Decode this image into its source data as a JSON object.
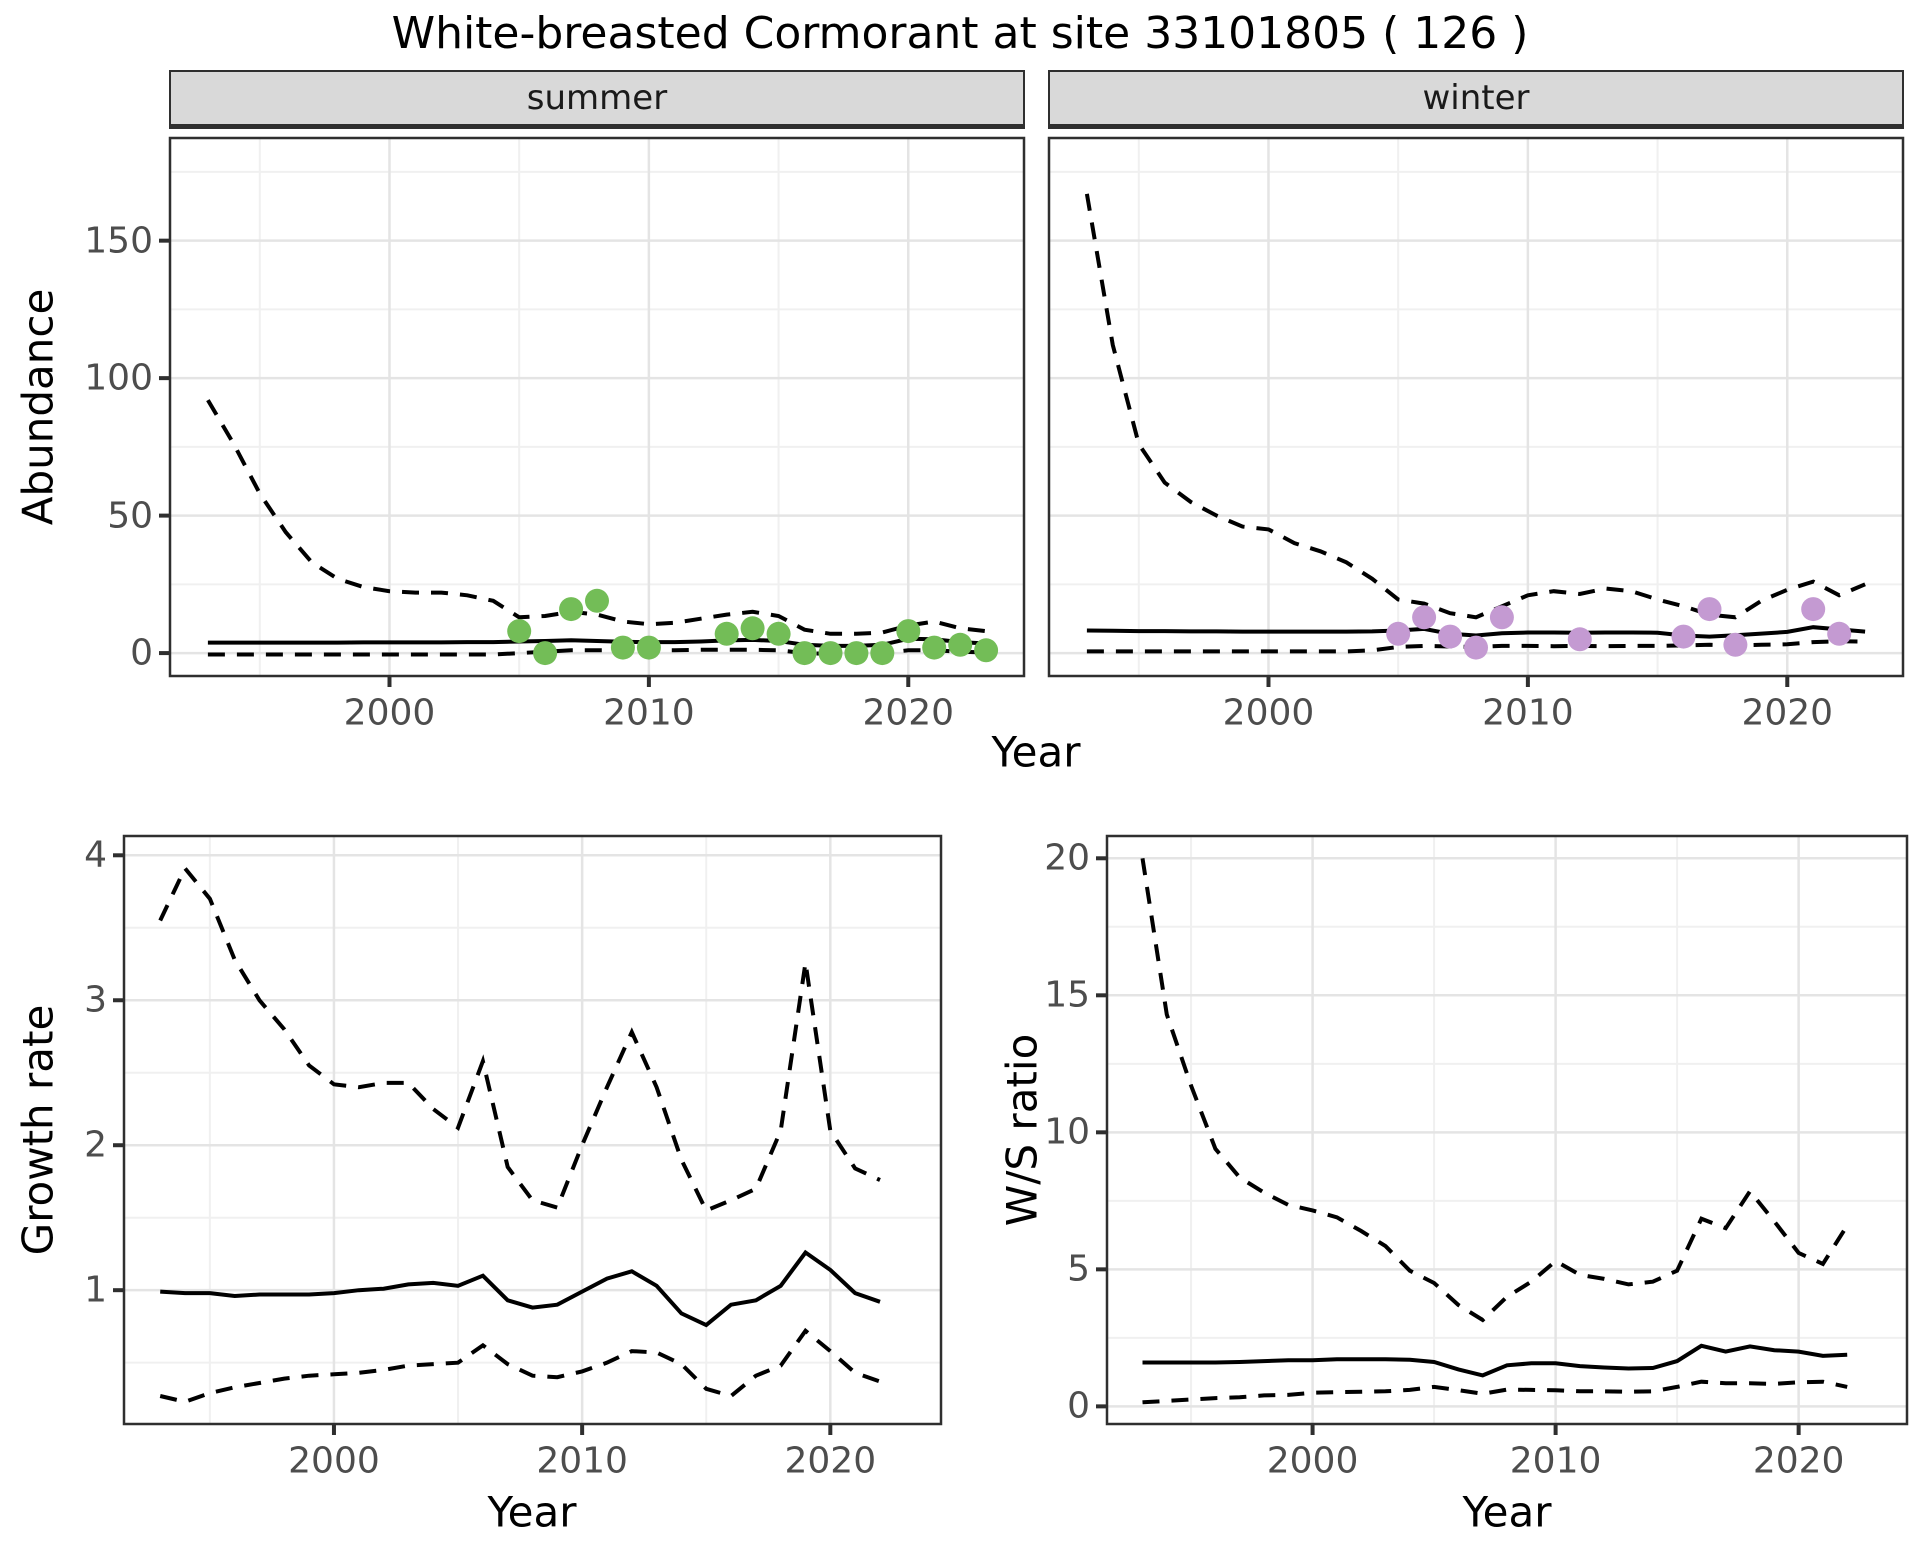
{
  "title": "White-breasted Cormorant at site 33101805 ( 126 )",
  "facets": {
    "summer_label": "summer",
    "winter_label": "winter"
  },
  "axes": {
    "abundance_label": "Abundance",
    "growth_label": "Growth rate",
    "ws_label": "W/S ratio",
    "year_label": "Year",
    "year_ticks": [
      2000,
      2010,
      2020
    ],
    "year_minor": [
      1995,
      2005,
      2015
    ],
    "abundance_ticks": [
      0,
      50,
      100,
      150
    ],
    "abundance_minor": [
      25,
      75,
      125,
      175
    ],
    "growth_ticks": [
      1,
      2,
      3,
      4
    ],
    "growth_minor": [
      0.5,
      1.5,
      2.5,
      3.5
    ],
    "ws_ticks": [
      0,
      5,
      10,
      15,
      20
    ],
    "ws_minor": [
      2.5,
      7.5,
      12.5,
      17.5
    ]
  },
  "colors": {
    "summer_dot": "#73bd57",
    "winter_dot": "#c49ad2",
    "line": "#000000",
    "grid_major": "#e4e4e4",
    "grid_minor": "#f0f0f0",
    "panel_border": "#2f2f2f",
    "axis_text": "#4d4d4d",
    "strip_bg": "#d9d9d9"
  },
  "chart_data": [
    {
      "id": "summer-abundance",
      "type": "line",
      "facet": "summer",
      "xlabel": "Year",
      "ylabel": "Abundance",
      "xlim": [
        1991.5,
        2024.5
      ],
      "ylim": [
        -8.7,
        187.7
      ],
      "x": [
        1993,
        1994,
        1995,
        1996,
        1997,
        1998,
        1999,
        2000,
        2001,
        2002,
        2003,
        2004,
        2005,
        2006,
        2007,
        2008,
        2009,
        2010,
        2011,
        2012,
        2013,
        2014,
        2015,
        2016,
        2017,
        2018,
        2019,
        2020,
        2021,
        2022,
        2023
      ],
      "series": [
        {
          "name": "mean",
          "style": "solid",
          "values": [
            3.8,
            3.8,
            3.8,
            3.8,
            3.8,
            3.8,
            3.9,
            3.9,
            3.9,
            3.9,
            4.0,
            4.0,
            4.2,
            4.4,
            4.7,
            4.4,
            4.1,
            4.0,
            4.0,
            4.2,
            4.6,
            4.8,
            4.4,
            3.0,
            2.6,
            2.6,
            3.0,
            5.2,
            5.0,
            4.0,
            3.5
          ]
        },
        {
          "name": "upper_ci",
          "style": "dashed",
          "values": [
            92,
            76,
            58,
            44,
            33,
            27,
            24,
            22.5,
            22,
            22,
            21,
            19,
            13,
            13.5,
            15,
            14,
            11.5,
            10.5,
            11,
            12.5,
            14,
            15,
            13.5,
            8.5,
            7,
            7,
            7.5,
            10,
            11.5,
            9,
            8
          ]
        },
        {
          "name": "lower_ci",
          "style": "dashed",
          "values": [
            -0.5,
            -0.5,
            -0.5,
            -0.5,
            -0.5,
            -0.5,
            -0.5,
            -0.5,
            -0.5,
            -0.5,
            -0.5,
            -0.5,
            0,
            0.5,
            1,
            1,
            1,
            1,
            1,
            1.2,
            1.2,
            1.2,
            1,
            0,
            -0.3,
            -0.3,
            0,
            1,
            1,
            0.5,
            0.2
          ]
        }
      ],
      "observations": {
        "x": [
          2005,
          2006,
          2007,
          2008,
          2009,
          2010,
          2013,
          2014,
          2015,
          2016,
          2017,
          2018,
          2019,
          2020,
          2021,
          2022,
          2023
        ],
        "y": [
          8,
          0,
          16,
          19,
          2,
          2,
          7,
          9,
          7,
          0,
          0,
          0,
          0,
          8,
          2,
          3,
          1
        ]
      }
    },
    {
      "id": "winter-abundance",
      "type": "line",
      "facet": "winter",
      "xlabel": "Year",
      "ylabel": "Abundance",
      "xlim": [
        1991.5,
        2024.5
      ],
      "ylim": [
        -8.7,
        187.7
      ],
      "x": [
        1993,
        1994,
        1995,
        1996,
        1997,
        1998,
        1999,
        2000,
        2001,
        2002,
        2003,
        2004,
        2005,
        2006,
        2007,
        2008,
        2009,
        2010,
        2011,
        2012,
        2013,
        2014,
        2015,
        2016,
        2017,
        2018,
        2019,
        2020,
        2021,
        2022,
        2023
      ],
      "series": [
        {
          "name": "mean",
          "style": "solid",
          "values": [
            8.2,
            8.1,
            8.0,
            8.0,
            7.9,
            7.9,
            7.8,
            7.8,
            7.8,
            7.8,
            7.8,
            7.9,
            8.2,
            8.8,
            7.0,
            6.4,
            7.2,
            7.5,
            7.5,
            7.4,
            7.5,
            7.5,
            7.4,
            6.4,
            6.0,
            6.5,
            7.1,
            7.7,
            9.4,
            8.6,
            7.8
          ]
        },
        {
          "name": "upper_ci",
          "style": "dashed",
          "values": [
            167,
            112,
            76,
            62,
            55,
            50,
            46,
            45,
            40,
            37,
            33,
            27,
            19.5,
            18,
            14.5,
            13,
            17,
            21,
            22.5,
            21.5,
            23.5,
            22.5,
            19.5,
            17,
            14,
            13,
            19,
            23,
            26,
            21,
            25
          ]
        },
        {
          "name": "lower_ci",
          "style": "dashed",
          "values": [
            0.6,
            0.6,
            0.6,
            0.6,
            0.6,
            0.6,
            0.6,
            0.6,
            0.6,
            0.6,
            0.6,
            1.0,
            2.2,
            2.6,
            2.4,
            2.2,
            2.6,
            2.6,
            2.5,
            2.6,
            2.5,
            2.6,
            2.6,
            2.8,
            3.0,
            2.8,
            3.0,
            3.2,
            4.0,
            4.3,
            4.2
          ]
        }
      ],
      "observations": {
        "x": [
          2005,
          2006,
          2007,
          2008,
          2009,
          2012,
          2016,
          2017,
          2018,
          2021,
          2022
        ],
        "y": [
          7,
          13,
          6,
          2,
          13,
          5,
          6,
          16,
          3,
          16,
          7
        ]
      }
    },
    {
      "id": "growth-rate",
      "type": "line",
      "facet": null,
      "xlabel": "Year",
      "ylabel": "Growth rate",
      "xlim": [
        1991.5,
        2024.5
      ],
      "ylim": [
        0.07,
        4.14
      ],
      "x": [
        1993,
        1994,
        1995,
        1996,
        1997,
        1998,
        1999,
        2000,
        2001,
        2002,
        2003,
        2004,
        2005,
        2006,
        2007,
        2008,
        2009,
        2010,
        2011,
        2012,
        2013,
        2014,
        2015,
        2016,
        2017,
        2018,
        2019,
        2020,
        2021,
        2022
      ],
      "series": [
        {
          "name": "mean",
          "style": "solid",
          "values": [
            0.99,
            0.98,
            0.98,
            0.96,
            0.97,
            0.97,
            0.97,
            0.98,
            1.0,
            1.01,
            1.04,
            1.05,
            1.03,
            1.1,
            0.93,
            0.88,
            0.9,
            0.99,
            1.08,
            1.13,
            1.03,
            0.84,
            0.76,
            0.9,
            0.93,
            1.03,
            1.26,
            1.14,
            0.98,
            0.92
          ]
        },
        {
          "name": "upper_ci",
          "style": "dashed",
          "values": [
            3.55,
            3.91,
            3.7,
            3.28,
            3.0,
            2.8,
            2.55,
            2.42,
            2.4,
            2.43,
            2.43,
            2.25,
            2.12,
            2.58,
            1.85,
            1.62,
            1.57,
            2.0,
            2.4,
            2.78,
            2.4,
            1.9,
            1.55,
            1.62,
            1.7,
            2.1,
            3.26,
            2.1,
            1.84,
            1.76
          ]
        },
        {
          "name": "lower_ci",
          "style": "dashed",
          "values": [
            0.27,
            0.23,
            0.29,
            0.33,
            0.36,
            0.39,
            0.41,
            0.42,
            0.43,
            0.45,
            0.48,
            0.49,
            0.5,
            0.62,
            0.49,
            0.41,
            0.4,
            0.44,
            0.5,
            0.58,
            0.57,
            0.49,
            0.32,
            0.27,
            0.41,
            0.48,
            0.72,
            0.58,
            0.43,
            0.37
          ]
        }
      ],
      "observations": {
        "x": [],
        "y": []
      }
    },
    {
      "id": "ws-ratio",
      "type": "line",
      "facet": null,
      "xlabel": "Year",
      "ylabel": "W/S ratio",
      "xlim": [
        1991.5,
        2024.5
      ],
      "ylim": [
        -0.68,
        20.85
      ],
      "x": [
        1993,
        1994,
        1995,
        1996,
        1997,
        1998,
        1999,
        2000,
        2001,
        2002,
        2003,
        2004,
        2005,
        2006,
        2007,
        2008,
        2009,
        2010,
        2011,
        2012,
        2013,
        2014,
        2015,
        2016,
        2017,
        2018,
        2019,
        2020,
        2021,
        2022
      ],
      "series": [
        {
          "name": "mean",
          "style": "solid",
          "values": [
            1.6,
            1.6,
            1.6,
            1.6,
            1.62,
            1.65,
            1.68,
            1.68,
            1.72,
            1.72,
            1.72,
            1.7,
            1.62,
            1.35,
            1.13,
            1.5,
            1.57,
            1.57,
            1.47,
            1.42,
            1.38,
            1.4,
            1.65,
            2.21,
            2.0,
            2.19,
            2.05,
            2.0,
            1.84,
            1.88
          ]
        },
        {
          "name": "upper_ci",
          "style": "dashed",
          "values": [
            20.0,
            14.3,
            11.7,
            9.4,
            8.35,
            7.8,
            7.35,
            7.15,
            6.9,
            6.4,
            5.85,
            4.95,
            4.5,
            3.7,
            3.15,
            4.0,
            4.55,
            5.3,
            4.8,
            4.65,
            4.45,
            4.55,
            4.95,
            6.85,
            6.5,
            7.85,
            6.75,
            5.6,
            5.2,
            6.6
          ]
        },
        {
          "name": "lower_ci",
          "style": "dashed",
          "values": [
            0.15,
            0.2,
            0.25,
            0.3,
            0.33,
            0.4,
            0.42,
            0.5,
            0.52,
            0.53,
            0.55,
            0.6,
            0.71,
            0.59,
            0.46,
            0.61,
            0.6,
            0.59,
            0.55,
            0.55,
            0.53,
            0.55,
            0.71,
            0.9,
            0.84,
            0.84,
            0.82,
            0.88,
            0.9,
            0.71
          ]
        }
      ],
      "observations": {
        "x": [],
        "y": []
      }
    }
  ]
}
